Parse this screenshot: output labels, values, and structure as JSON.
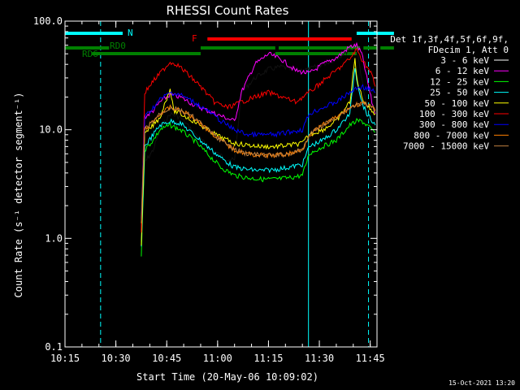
{
  "chart_data": {
    "type": "line",
    "title": "RHESSI Count Rates",
    "xlabel": "Start Time (20-May-06 10:09:02)",
    "ylabel": "Count Rate (s⁻¹ detector segment⁻¹)",
    "yscale": "log",
    "ylim": [
      0.1,
      100.0
    ],
    "xlim_minutes": [
      10.15,
      10.77
    ],
    "x_ticks": [
      "10:15",
      "10:30",
      "10:45",
      "11:00",
      "11:15",
      "11:30",
      "11:45"
    ],
    "y_ticks": [
      "100.0",
      "10.0",
      "1.0",
      "0.1"
    ],
    "legend_header": [
      "Det 1f,3f,4f,5f,6f,9f,",
      "FDecim 1, Att 0"
    ],
    "series": [
      {
        "name": "3 - 6 keV",
        "color": "#000000",
        "points": [
          [
            22.5,
            1.1
          ],
          [
            23.5,
            5
          ],
          [
            26,
            6.5
          ],
          [
            28,
            10
          ],
          [
            31,
            14
          ],
          [
            34,
            13
          ],
          [
            38,
            9.5
          ],
          [
            42,
            7
          ],
          [
            47,
            5.5
          ],
          [
            50,
            5.2
          ],
          [
            52,
            22
          ],
          [
            56,
            30
          ],
          [
            60,
            36
          ],
          [
            64,
            38
          ],
          [
            68,
            35
          ],
          [
            72,
            36
          ],
          [
            76,
            40
          ],
          [
            80,
            45
          ],
          [
            84,
            55
          ],
          [
            86,
            55
          ],
          [
            87.5,
            30
          ],
          [
            89,
            15
          ],
          [
            90.5,
            9
          ],
          [
            91.5,
            7
          ]
        ]
      },
      {
        "name": "6 - 12 keV",
        "color": "#ff00ff",
        "points": [
          [
            22.5,
            1.2
          ],
          [
            23.5,
            13
          ],
          [
            26,
            15
          ],
          [
            28,
            18
          ],
          [
            31,
            21
          ],
          [
            34,
            20
          ],
          [
            38,
            17
          ],
          [
            42,
            15
          ],
          [
            47,
            13
          ],
          [
            50,
            12
          ],
          [
            52,
            22
          ],
          [
            56,
            40
          ],
          [
            60,
            50
          ],
          [
            64,
            44
          ],
          [
            68,
            35
          ],
          [
            72,
            33
          ],
          [
            76,
            40
          ],
          [
            80,
            46
          ],
          [
            84,
            58
          ],
          [
            86,
            60
          ],
          [
            87.5,
            50
          ],
          [
            89,
            30
          ],
          [
            90.5,
            18
          ],
          [
            91.5,
            14
          ]
        ]
      },
      {
        "name": "12 - 25 keV",
        "color": "#00ff00",
        "points": [
          [
            22.5,
            0.7
          ],
          [
            23.5,
            6.5
          ],
          [
            26,
            8
          ],
          [
            28,
            10
          ],
          [
            31,
            11
          ],
          [
            34,
            10
          ],
          [
            38,
            8
          ],
          [
            42,
            6
          ],
          [
            46,
            4.5
          ],
          [
            50,
            3.8
          ],
          [
            54,
            3.6
          ],
          [
            58,
            3.5
          ],
          [
            62,
            3.5
          ],
          [
            66,
            3.6
          ],
          [
            70,
            3.8
          ],
          [
            72,
            6
          ],
          [
            76,
            7
          ],
          [
            80,
            8
          ],
          [
            84,
            11
          ],
          [
            86,
            12
          ],
          [
            87.5,
            12
          ],
          [
            89,
            11
          ],
          [
            90.5,
            10
          ],
          [
            91.5,
            9.5
          ]
        ]
      },
      {
        "name": "25 - 50 keV",
        "color": "#00ffff",
        "points": [
          [
            22.5,
            0.8
          ],
          [
            23.5,
            7
          ],
          [
            26,
            9
          ],
          [
            28,
            11
          ],
          [
            31,
            12
          ],
          [
            34,
            11.5
          ],
          [
            38,
            9
          ],
          [
            42,
            7
          ],
          [
            46,
            5.5
          ],
          [
            50,
            4.5
          ],
          [
            54,
            4.3
          ],
          [
            58,
            4.2
          ],
          [
            62,
            4.3
          ],
          [
            66,
            4.5
          ],
          [
            70,
            4.8
          ],
          [
            72,
            7
          ],
          [
            76,
            8
          ],
          [
            80,
            10
          ],
          [
            84,
            14
          ],
          [
            85.5,
            38
          ],
          [
            86,
            30
          ],
          [
            87.5,
            18
          ],
          [
            89,
            14
          ],
          [
            90.5,
            12
          ],
          [
            91.5,
            11
          ]
        ]
      },
      {
        "name": "50 - 100 keV",
        "color": "#ffff00",
        "points": [
          [
            22.5,
            0.9
          ],
          [
            23.5,
            9
          ],
          [
            26,
            11
          ],
          [
            28,
            13
          ],
          [
            31,
            24
          ],
          [
            32,
            15
          ],
          [
            34,
            14
          ],
          [
            38,
            12
          ],
          [
            42,
            10
          ],
          [
            46,
            8.5
          ],
          [
            50,
            7.5
          ],
          [
            54,
            7.2
          ],
          [
            58,
            7
          ],
          [
            62,
            7
          ],
          [
            66,
            7.2
          ],
          [
            70,
            7.5
          ],
          [
            72,
            9
          ],
          [
            76,
            10
          ],
          [
            80,
            12
          ],
          [
            84,
            18
          ],
          [
            85.5,
            45
          ],
          [
            86,
            30
          ],
          [
            87.5,
            20
          ],
          [
            89,
            17
          ],
          [
            90.5,
            15
          ],
          [
            91.5,
            14
          ]
        ]
      },
      {
        "name": "100 - 300 keV",
        "color": "#ff0000",
        "points": [
          [
            22.5,
            1.1
          ],
          [
            23.5,
            22
          ],
          [
            26,
            28
          ],
          [
            28,
            33
          ],
          [
            31,
            42
          ],
          [
            33,
            40
          ],
          [
            36,
            33
          ],
          [
            40,
            25
          ],
          [
            44,
            18
          ],
          [
            48,
            16
          ],
          [
            52,
            18
          ],
          [
            56,
            20
          ],
          [
            60,
            22
          ],
          [
            64,
            20
          ],
          [
            68,
            18
          ],
          [
            72,
            22
          ],
          [
            76,
            28
          ],
          [
            80,
            35
          ],
          [
            84,
            45
          ],
          [
            86,
            55
          ],
          [
            87.5,
            45
          ],
          [
            89,
            38
          ],
          [
            90.5,
            32
          ],
          [
            91.5,
            25
          ]
        ]
      },
      {
        "name": "300 - 800 keV",
        "color": "#0000ff",
        "points": [
          [
            22.5,
            1.5
          ],
          [
            23.5,
            13
          ],
          [
            26,
            16
          ],
          [
            28,
            19
          ],
          [
            31,
            22
          ],
          [
            34,
            21
          ],
          [
            38,
            18
          ],
          [
            42,
            15
          ],
          [
            46,
            12
          ],
          [
            50,
            10
          ],
          [
            54,
            9
          ],
          [
            58,
            9
          ],
          [
            62,
            9
          ],
          [
            66,
            9.5
          ],
          [
            70,
            10
          ],
          [
            72,
            14
          ],
          [
            76,
            16
          ],
          [
            80,
            18
          ],
          [
            84,
            22
          ],
          [
            86,
            24
          ],
          [
            87.5,
            25
          ],
          [
            89,
            24
          ],
          [
            90.5,
            23
          ],
          [
            91.5,
            22
          ]
        ]
      },
      {
        "name": "800 - 7000 keV",
        "color": "#ff8000",
        "points": [
          [
            22.5,
            1.4
          ],
          [
            23.5,
            10
          ],
          [
            26,
            12
          ],
          [
            28,
            14
          ],
          [
            31,
            16
          ],
          [
            34,
            15
          ],
          [
            38,
            13
          ],
          [
            42,
            10
          ],
          [
            46,
            8
          ],
          [
            50,
            6.5
          ],
          [
            54,
            6
          ],
          [
            58,
            5.8
          ],
          [
            62,
            5.8
          ],
          [
            66,
            6
          ],
          [
            70,
            6.5
          ],
          [
            72,
            9
          ],
          [
            76,
            11
          ],
          [
            80,
            13
          ],
          [
            84,
            16
          ],
          [
            86,
            17
          ],
          [
            87.5,
            17.5
          ],
          [
            89,
            17
          ],
          [
            90.5,
            16
          ],
          [
            91.5,
            15
          ]
        ]
      },
      {
        "name": "7000 - 15000 keV",
        "color": "#c08040",
        "points": [
          [
            22.5,
            1.4
          ],
          [
            23.5,
            10
          ],
          [
            26,
            12
          ],
          [
            28,
            14
          ],
          [
            31,
            16
          ],
          [
            34,
            15
          ],
          [
            38,
            13
          ],
          [
            42,
            10
          ],
          [
            46,
            8
          ],
          [
            50,
            6.5
          ],
          [
            54,
            6
          ],
          [
            58,
            5.8
          ],
          [
            62,
            5.8
          ],
          [
            66,
            6
          ],
          [
            70,
            6.5
          ],
          [
            72,
            9
          ],
          [
            76,
            11
          ],
          [
            80,
            13
          ],
          [
            84,
            16
          ],
          [
            86,
            17
          ],
          [
            87.5,
            17.5
          ],
          [
            89,
            17
          ],
          [
            90.5,
            16
          ],
          [
            91.5,
            15
          ]
        ]
      }
    ],
    "annotation_bars": [
      {
        "label": "N",
        "color": "#00ffff",
        "segments": [
          [
            0,
            17
          ],
          [
            86,
            97
          ]
        ]
      },
      {
        "label": "F",
        "color": "#ff0000",
        "segments": [
          [
            42,
            84.5
          ]
        ]
      },
      {
        "label": "RD0",
        "color": "#008000",
        "segments": [
          [
            0,
            13
          ],
          [
            40,
            62
          ],
          [
            63,
            87
          ],
          [
            88,
            92
          ],
          [
            93,
            97
          ]
        ]
      },
      {
        "label": "RD6",
        "color": "#008000",
        "segments": [
          [
            8,
            40
          ],
          [
            62,
            86
          ]
        ]
      }
    ],
    "vlines": [
      {
        "x": 17.5,
        "color": "#00ffff",
        "style": "dashed"
      },
      {
        "x": 96.5,
        "color": "#00ffff",
        "style": "dashed"
      },
      {
        "x": 78.8,
        "color": "#00ffff",
        "style": "solid"
      }
    ],
    "footer": "15-Oct-2021 13:20"
  }
}
